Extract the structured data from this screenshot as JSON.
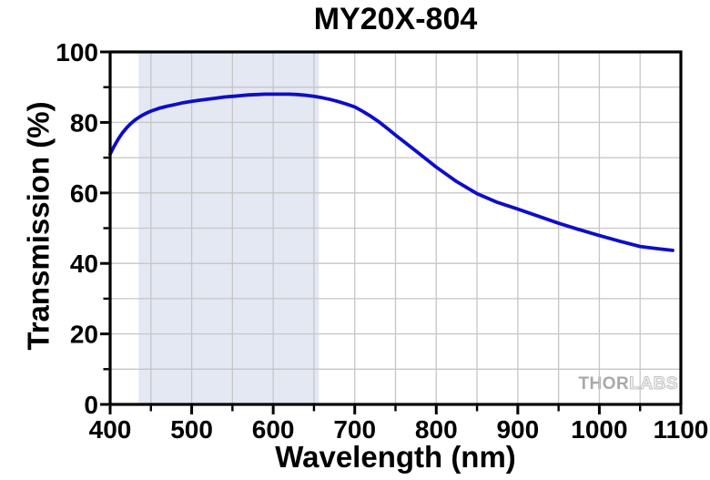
{
  "title": "MY20X-804",
  "watermark": {
    "thor": "THOR",
    "labs": "LABS"
  },
  "colors": {
    "curve": "#0d0dca",
    "shaded_band": "#e4e8f3",
    "gridline": "#c6c6c6",
    "axis": "#000000",
    "background": "#ffffff",
    "watermark_thor": "#a9a9a9",
    "watermark_labs": "#c3c3c3"
  },
  "chart_data": {
    "type": "line",
    "title": "MY20X-804",
    "xlabel": "Wavelength (nm)",
    "ylabel": "Transmission (%)",
    "xlim": [
      400,
      1100
    ],
    "ylim": [
      0,
      100
    ],
    "x_major_ticks": [
      400,
      500,
      600,
      700,
      800,
      900,
      1000,
      1100
    ],
    "x_minor_step": 50,
    "y_major_ticks": [
      0,
      20,
      40,
      60,
      80,
      100
    ],
    "y_minor_step": 10,
    "grid": "on, every 50 nm vertical and 10 % horizontal, light gray",
    "legend": "none",
    "shaded_region_nm": [
      435,
      656
    ],
    "series": [
      {
        "name": "Transmission",
        "color": "#0d0dca",
        "x": [
          400,
          405,
          410,
          415,
          420,
          425,
          430,
          435,
          440,
          445,
          450,
          460,
          470,
          480,
          490,
          500,
          510,
          520,
          530,
          540,
          550,
          560,
          570,
          580,
          590,
          600,
          610,
          620,
          630,
          640,
          650,
          660,
          670,
          680,
          690,
          700,
          710,
          720,
          730,
          740,
          750,
          775,
          800,
          825,
          850,
          875,
          900,
          925,
          950,
          975,
          1000,
          1025,
          1050,
          1070,
          1090
        ],
        "y": [
          71.0,
          73.3,
          75.3,
          77.0,
          78.4,
          79.6,
          80.6,
          81.4,
          82.1,
          82.7,
          83.2,
          84.0,
          84.6,
          85.1,
          85.6,
          86.0,
          86.3,
          86.6,
          86.9,
          87.2,
          87.4,
          87.6,
          87.8,
          87.9,
          88.0,
          88.0,
          88.0,
          88.0,
          87.9,
          87.7,
          87.4,
          87.0,
          86.5,
          85.9,
          85.2,
          84.4,
          83.1,
          81.7,
          80.1,
          78.3,
          76.4,
          71.9,
          67.3,
          63.2,
          59.8,
          57.3,
          55.4,
          53.4,
          51.4,
          49.6,
          47.9,
          46.3,
          44.8,
          44.2,
          43.7
        ]
      }
    ]
  }
}
